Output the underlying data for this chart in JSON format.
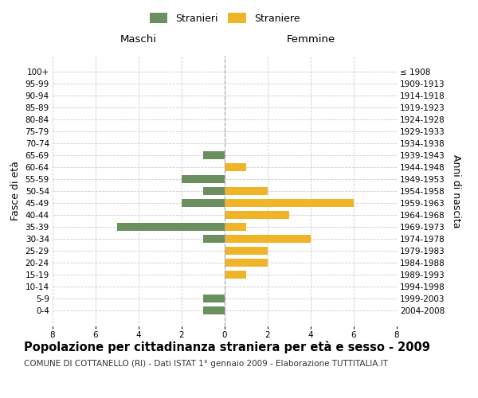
{
  "age_groups": [
    "100+",
    "95-99",
    "90-94",
    "85-89",
    "80-84",
    "75-79",
    "70-74",
    "65-69",
    "60-64",
    "55-59",
    "50-54",
    "45-49",
    "40-44",
    "35-39",
    "30-34",
    "25-29",
    "20-24",
    "15-19",
    "10-14",
    "5-9",
    "0-4"
  ],
  "birth_years": [
    "≤ 1908",
    "1909-1913",
    "1914-1918",
    "1919-1923",
    "1924-1928",
    "1929-1933",
    "1934-1938",
    "1939-1943",
    "1944-1948",
    "1949-1953",
    "1954-1958",
    "1959-1963",
    "1964-1968",
    "1969-1973",
    "1974-1978",
    "1979-1983",
    "1984-1988",
    "1989-1993",
    "1994-1998",
    "1999-2003",
    "2004-2008"
  ],
  "maschi": [
    0,
    0,
    0,
    0,
    0,
    0,
    0,
    1,
    0,
    2,
    1,
    2,
    0,
    5,
    1,
    0,
    0,
    0,
    0,
    1,
    1
  ],
  "femmine": [
    0,
    0,
    0,
    0,
    0,
    0,
    0,
    0,
    1,
    0,
    2,
    6,
    3,
    1,
    4,
    2,
    2,
    1,
    0,
    0,
    0
  ],
  "male_color": "#6b8f5e",
  "female_color": "#f0b429",
  "background_color": "#ffffff",
  "grid_color": "#cccccc",
  "xlim": 8,
  "title": "Popolazione per cittadinanza straniera per età e sesso - 2009",
  "subtitle": "COMUNE DI COTTANELLO (RI) - Dati ISTAT 1° gennaio 2009 - Elaborazione TUTTITALIA.IT",
  "ylabel_left": "Fasce di età",
  "ylabel_right": "Anni di nascita",
  "xlabel_left": "Maschi",
  "xlabel_right": "Femmine",
  "legend_stranieri": "Stranieri",
  "legend_straniere": "Straniere",
  "title_fontsize": 10.5,
  "subtitle_fontsize": 7.5,
  "axis_label_fontsize": 9,
  "tick_fontsize": 7.5
}
